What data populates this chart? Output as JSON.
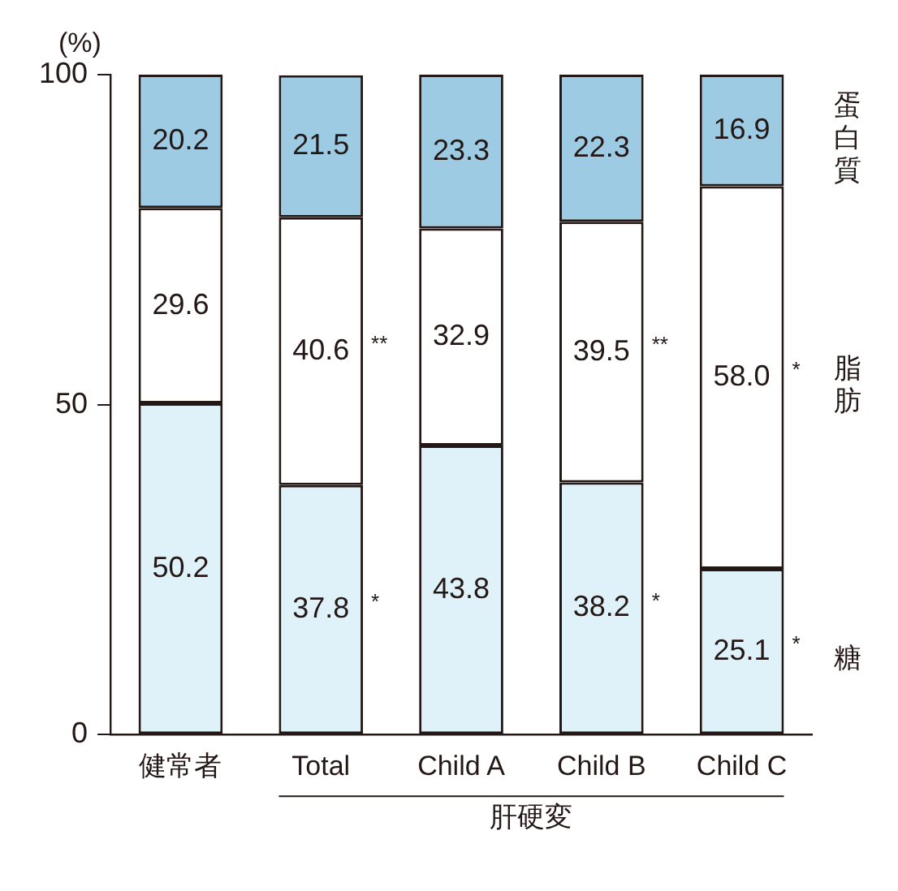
{
  "chart_data": {
    "type": "bar",
    "stacked": true,
    "ylabel": "(%)",
    "categories": [
      "健常者",
      "Total",
      "Child A",
      "Child B",
      "Child C"
    ],
    "series": [
      {
        "name": "糖",
        "color": "#dff1f9",
        "values": [
          50.2,
          37.8,
          43.8,
          38.2,
          25.1
        ],
        "value_labels": [
          "50.2",
          "37.8 *",
          "43.8",
          "38.2 *",
          "25.1 *"
        ]
      },
      {
        "name": "脂肪",
        "color": "#ffffff",
        "values": [
          29.6,
          40.6,
          32.9,
          39.5,
          58.0
        ],
        "value_labels": [
          "29.6",
          "40.6 **",
          "32.9",
          "39.5 **",
          "58.0 *"
        ]
      },
      {
        "name": "蛋白質",
        "color": "#9ccbe3",
        "values": [
          20.2,
          21.5,
          23.3,
          22.3,
          16.9
        ],
        "value_labels": [
          "20.2",
          "21.5",
          "23.3",
          "22.3",
          "16.9"
        ]
      }
    ],
    "ylim": [
      0,
      100
    ],
    "yticks": [
      0,
      50,
      100
    ],
    "grid": false,
    "legend": false,
    "annotations": [
      "肝硬変"
    ]
  }
}
